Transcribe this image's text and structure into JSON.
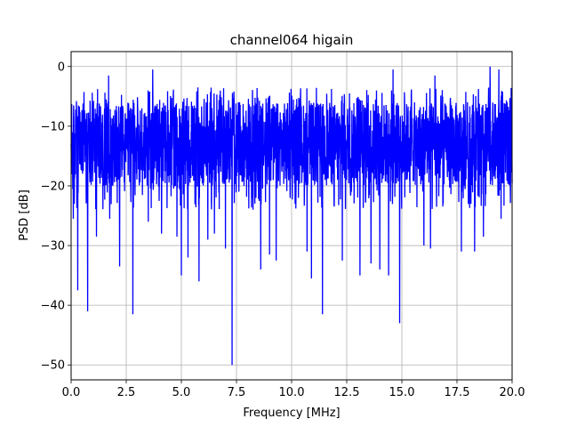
{
  "chart_data": {
    "type": "line",
    "title": "channel064 higain",
    "xlabel": "Frequency [MHz]",
    "ylabel": "PSD [dB]",
    "xlim": [
      0,
      20
    ],
    "ylim": [
      -52.5,
      2.5
    ],
    "x_ticks": [
      0,
      2.5,
      5,
      7.5,
      10,
      12.5,
      15,
      17.5,
      20
    ],
    "x_tick_labels": [
      "0.0",
      "2.5",
      "5.0",
      "7.5",
      "10.0",
      "12.5",
      "15.0",
      "17.5",
      "20.0"
    ],
    "y_ticks": [
      0,
      -10,
      -20,
      -30,
      -40,
      -50
    ],
    "y_tick_labels": [
      "0",
      "−10",
      "−20",
      "−30",
      "−40",
      "−50"
    ],
    "grid": true,
    "legend": "none",
    "series": [
      {
        "color": "#0000ff",
        "noise_band_db": [
          -20,
          -6
        ],
        "dips": [
          {
            "x": 0.1,
            "y": -25.5
          },
          {
            "x": 0.3,
            "y": -37.5
          },
          {
            "x": 0.75,
            "y": -41
          },
          {
            "x": 1.15,
            "y": -28.5
          },
          {
            "x": 1.75,
            "y": -25.5
          },
          {
            "x": 2.2,
            "y": -33.5
          },
          {
            "x": 2.8,
            "y": -41.5
          },
          {
            "x": 3.5,
            "y": -26
          },
          {
            "x": 4.1,
            "y": -28
          },
          {
            "x": 4.8,
            "y": -28.5
          },
          {
            "x": 5.0,
            "y": -35
          },
          {
            "x": 5.3,
            "y": -32
          },
          {
            "x": 5.8,
            "y": -36
          },
          {
            "x": 6.2,
            "y": -29
          },
          {
            "x": 6.5,
            "y": -28
          },
          {
            "x": 7.0,
            "y": -30.5
          },
          {
            "x": 7.3,
            "y": -50
          },
          {
            "x": 8.6,
            "y": -34
          },
          {
            "x": 9.0,
            "y": -31.5
          },
          {
            "x": 9.3,
            "y": -32.5
          },
          {
            "x": 10.7,
            "y": -31
          },
          {
            "x": 10.9,
            "y": -35.5
          },
          {
            "x": 11.4,
            "y": -41.5
          },
          {
            "x": 12.3,
            "y": -32.5
          },
          {
            "x": 13.1,
            "y": -35
          },
          {
            "x": 13.6,
            "y": -33
          },
          {
            "x": 14.0,
            "y": -34
          },
          {
            "x": 14.4,
            "y": -35
          },
          {
            "x": 14.9,
            "y": -43
          },
          {
            "x": 16.0,
            "y": -30
          },
          {
            "x": 16.3,
            "y": -30.5
          },
          {
            "x": 17.7,
            "y": -31
          },
          {
            "x": 18.3,
            "y": -31
          },
          {
            "x": 18.7,
            "y": -28.5
          },
          {
            "x": 19.5,
            "y": -25.5
          }
        ],
        "peaks": [
          {
            "x": 1.7,
            "y": -1.5
          },
          {
            "x": 3.7,
            "y": -0.5
          },
          {
            "x": 14.6,
            "y": -0.5
          },
          {
            "x": 16.5,
            "y": -1.5
          },
          {
            "x": 19.0,
            "y": 0
          },
          {
            "x": 19.4,
            "y": -0.5
          }
        ]
      }
    ]
  }
}
